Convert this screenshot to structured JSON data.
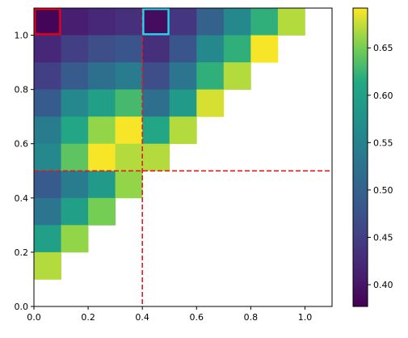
{
  "chart_data": {
    "type": "heatmap",
    "title": "",
    "xlabel": "",
    "ylabel": "",
    "xlim": [
      0,
      1.1
    ],
    "ylim": [
      0,
      1.1
    ],
    "cell_size": 0.1,
    "x_ticks": [
      "0.0",
      "0.2",
      "0.4",
      "0.6",
      "0.8",
      "1.0"
    ],
    "y_ticks": [
      "0.0",
      "0.2",
      "0.4",
      "0.6",
      "0.8",
      "1.0"
    ],
    "colorbar": {
      "vmin": 0.377,
      "vmax": 0.692,
      "ticks": [
        "0.40",
        "0.45",
        "0.50",
        "0.55",
        "0.60",
        "0.65"
      ],
      "colormap": "viridis"
    },
    "grid": false,
    "rows": [
      {
        "y": 1.0,
        "values": [
          0.38,
          0.41,
          0.42,
          0.43,
          0.39,
          0.44,
          0.5,
          0.56,
          0.62,
          0.67
        ]
      },
      {
        "y": 0.9,
        "values": [
          0.42,
          0.45,
          0.47,
          0.48,
          0.43,
          0.48,
          0.56,
          0.62,
          0.69
        ]
      },
      {
        "y": 0.8,
        "values": [
          0.45,
          0.49,
          0.52,
          0.54,
          0.47,
          0.53,
          0.62,
          0.67
        ]
      },
      {
        "y": 0.7,
        "values": [
          0.49,
          0.56,
          0.6,
          0.63,
          0.52,
          0.59,
          0.68
        ]
      },
      {
        "y": 0.6,
        "values": [
          0.54,
          0.61,
          0.66,
          0.69,
          0.61,
          0.67
        ]
      },
      {
        "y": 0.5,
        "values": [
          0.56,
          0.64,
          0.69,
          0.67,
          0.67
        ]
      },
      {
        "y": 0.4,
        "values": [
          0.49,
          0.54,
          0.59,
          0.66
        ]
      },
      {
        "y": 0.3,
        "values": [
          0.53,
          0.6,
          0.65
        ]
      },
      {
        "y": 0.2,
        "values": [
          0.6,
          0.66
        ]
      },
      {
        "y": 0.1,
        "values": [
          0.67
        ]
      }
    ],
    "reference_lines": [
      {
        "orientation": "vertical",
        "x": 0.4,
        "color": "#e31a1c",
        "style": "dashed"
      },
      {
        "orientation": "horizontal",
        "y": 0.5,
        "color": "#e31a1c",
        "style": "dashed"
      }
    ],
    "highlighted_cells": [
      {
        "x": 0.0,
        "y": 1.0,
        "color": "#e8001c"
      },
      {
        "x": 0.4,
        "y": 1.0,
        "color": "#22d8ee"
      }
    ]
  }
}
